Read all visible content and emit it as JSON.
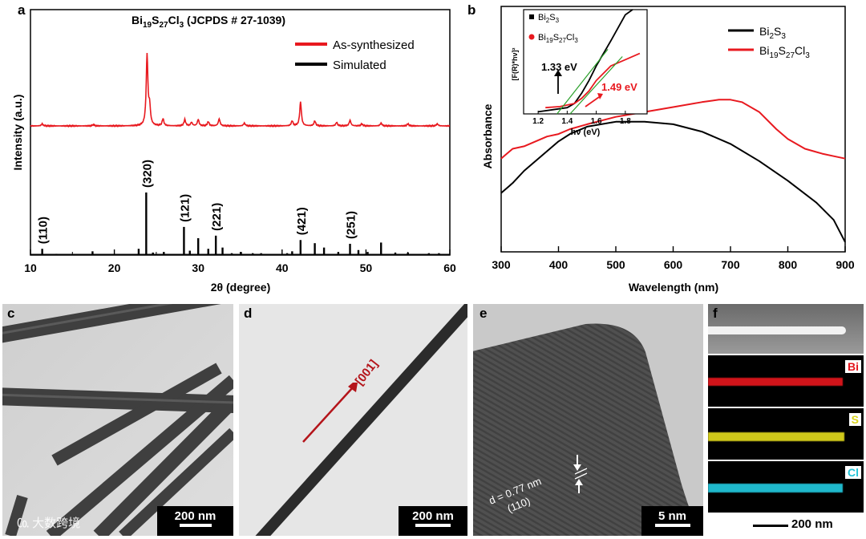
{
  "panels": {
    "a": "a",
    "b": "b",
    "c": "c",
    "d": "d",
    "e": "e",
    "f": "f"
  },
  "chart_data": [
    {
      "type": "line",
      "title": "Bi19S27Cl3 (JCPDS # 27-1039)",
      "title_parts": {
        "main": "Bi",
        "s1": "19",
        "m2": "S",
        "s2": "27",
        "m3": "Cl",
        "s3": "3",
        "rest": " (JCPDS # 27-1039)"
      },
      "xlabel": "2θ (degree)",
      "ylabel": "Intensity (a.u.)",
      "xlim": [
        10,
        60
      ],
      "xticks": [
        10,
        20,
        30,
        40,
        50,
        60
      ],
      "legend_position": "top-right",
      "series": [
        {
          "name": "As-synthesized",
          "color": "#e8191f",
          "peaks": [
            [
              11.4,
              0.3
            ],
            [
              17.5,
              0.2
            ],
            [
              23.9,
              10
            ],
            [
              24.2,
              2.5
            ],
            [
              25.8,
              1
            ],
            [
              28.4,
              0.9
            ],
            [
              29.2,
              0.5
            ],
            [
              30.0,
              0.9
            ],
            [
              31.2,
              0.6
            ],
            [
              32.5,
              1.0
            ],
            [
              35.5,
              0.4
            ],
            [
              41.2,
              0.7
            ],
            [
              42.2,
              3.4
            ],
            [
              43.9,
              0.7
            ],
            [
              46.5,
              0.5
            ],
            [
              48.1,
              0.8
            ],
            [
              49.5,
              0.3
            ],
            [
              51.8,
              0.4
            ],
            [
              55,
              0.3
            ],
            [
              58.5,
              0.3
            ]
          ]
        },
        {
          "name": "Simulated",
          "color": "#000000",
          "sticks": [
            [
              11.4,
              0.1
            ],
            [
              13.1,
              0.02
            ],
            [
              17.4,
              0.06
            ],
            [
              22.9,
              0.1
            ],
            [
              23.8,
              1.0
            ],
            [
              24.6,
              0.04
            ],
            [
              25.9,
              0.05
            ],
            [
              28.3,
              0.45
            ],
            [
              29.0,
              0.07
            ],
            [
              30.0,
              0.27
            ],
            [
              31.2,
              0.1
            ],
            [
              32.1,
              0.31
            ],
            [
              32.9,
              0.12
            ],
            [
              34.0,
              0.03
            ],
            [
              35.1,
              0.05
            ],
            [
              36.5,
              0.03
            ],
            [
              37.5,
              0.03
            ],
            [
              40.6,
              0.03
            ],
            [
              41.2,
              0.06
            ],
            [
              42.2,
              0.24
            ],
            [
              43.9,
              0.19
            ],
            [
              45.0,
              0.12
            ],
            [
              46.7,
              0.05
            ],
            [
              48.1,
              0.18
            ],
            [
              49.1,
              0.08
            ],
            [
              50.2,
              0.05
            ],
            [
              51.8,
              0.2
            ],
            [
              53.5,
              0.04
            ],
            [
              55.0,
              0.04
            ],
            [
              57.5,
              0.03
            ],
            [
              58.7,
              0.03
            ]
          ]
        }
      ],
      "annotations": [
        {
          "label": "(110)",
          "x": 11.4
        },
        {
          "label": "(320)",
          "x": 23.8
        },
        {
          "label": "(121)",
          "x": 28.3
        },
        {
          "label": "(221)",
          "x": 32.1
        },
        {
          "label": "(421)",
          "x": 42.2
        },
        {
          "label": "(251)",
          "x": 48.1
        }
      ]
    },
    {
      "type": "line",
      "xlabel": "Wavelength (nm)",
      "ylabel": "Absorbance",
      "xlim": [
        300,
        900
      ],
      "ylim": [
        0,
        1
      ],
      "xticks": [
        300,
        400,
        500,
        600,
        700,
        800,
        900
      ],
      "legend_position": "top-right",
      "series": [
        {
          "name": "Bi2S3",
          "name_parts": [
            "Bi",
            "2",
            "S",
            "3",
            "",
            ""
          ],
          "color": "#000000",
          "x": [
            300,
            320,
            340,
            360,
            380,
            400,
            420,
            450,
            500,
            550,
            600,
            650,
            700,
            750,
            800,
            850,
            880,
            900
          ],
          "y": [
            0.24,
            0.28,
            0.33,
            0.37,
            0.41,
            0.45,
            0.48,
            0.51,
            0.53,
            0.53,
            0.52,
            0.49,
            0.44,
            0.37,
            0.29,
            0.2,
            0.13,
            0.04
          ]
        },
        {
          "name": "Bi19S27Cl3",
          "name_parts": [
            "Bi",
            "19",
            "S",
            "27",
            "Cl",
            "3"
          ],
          "color": "#e8191f",
          "x": [
            300,
            310,
            320,
            340,
            360,
            380,
            400,
            420,
            450,
            500,
            550,
            600,
            650,
            680,
            700,
            720,
            750,
            780,
            800,
            830,
            860,
            880,
            900
          ],
          "y": [
            0.38,
            0.4,
            0.42,
            0.43,
            0.45,
            0.47,
            0.48,
            0.5,
            0.52,
            0.55,
            0.57,
            0.59,
            0.61,
            0.62,
            0.62,
            0.61,
            0.57,
            0.5,
            0.46,
            0.42,
            0.4,
            0.39,
            0.38
          ]
        }
      ]
    },
    {
      "type": "line",
      "subtitle": "inset",
      "xlabel": "hν (eV)",
      "ylabel": "[F(R)*hν]²",
      "xlim": [
        1.1,
        1.95
      ],
      "ylim": [
        0,
        1
      ],
      "xticks": [
        1.2,
        1.4,
        1.6,
        1.8
      ],
      "legend_position": "top-left",
      "series": [
        {
          "name": "Bi2S3",
          "name_parts": [
            "Bi",
            "2",
            "S",
            "3",
            "",
            ""
          ],
          "color": "#000000",
          "x": [
            1.2,
            1.3,
            1.4,
            1.45,
            1.5,
            1.55,
            1.6,
            1.7,
            1.8,
            1.85
          ],
          "y": [
            0.02,
            0.04,
            0.06,
            0.1,
            0.2,
            0.32,
            0.46,
            0.7,
            0.95,
            1.0
          ]
        },
        {
          "name": "Bi19S27Cl3",
          "name_parts": [
            "Bi",
            "19",
            "S",
            "27",
            "Cl",
            "3"
          ],
          "color": "#e8191f",
          "x": [
            1.25,
            1.35,
            1.45,
            1.5,
            1.55,
            1.6,
            1.7,
            1.8,
            1.9
          ],
          "y": [
            0.06,
            0.07,
            0.1,
            0.15,
            0.22,
            0.32,
            0.46,
            0.52,
            0.58
          ]
        }
      ],
      "annotations": [
        {
          "label": "1.33 eV",
          "color": "#000000"
        },
        {
          "label": "1.49 eV",
          "color": "#e8191f"
        }
      ]
    }
  ],
  "images": {
    "c": {
      "scale_label": "200 nm"
    },
    "d": {
      "scale_label": "200 nm",
      "direction_label": "[001]"
    },
    "e": {
      "scale_label": "5 nm",
      "spacing_label": "d = 0.77 nm",
      "plane_label": "(110)"
    },
    "f": {
      "scale_label": "200 nm",
      "elements": [
        {
          "label": "Bi",
          "color": "#e3141c"
        },
        {
          "label": "S",
          "color": "#d8d21a"
        },
        {
          "label": "Cl",
          "color": "#23c4d8"
        }
      ]
    }
  },
  "watermark": {
    "text": "大数跨境"
  }
}
